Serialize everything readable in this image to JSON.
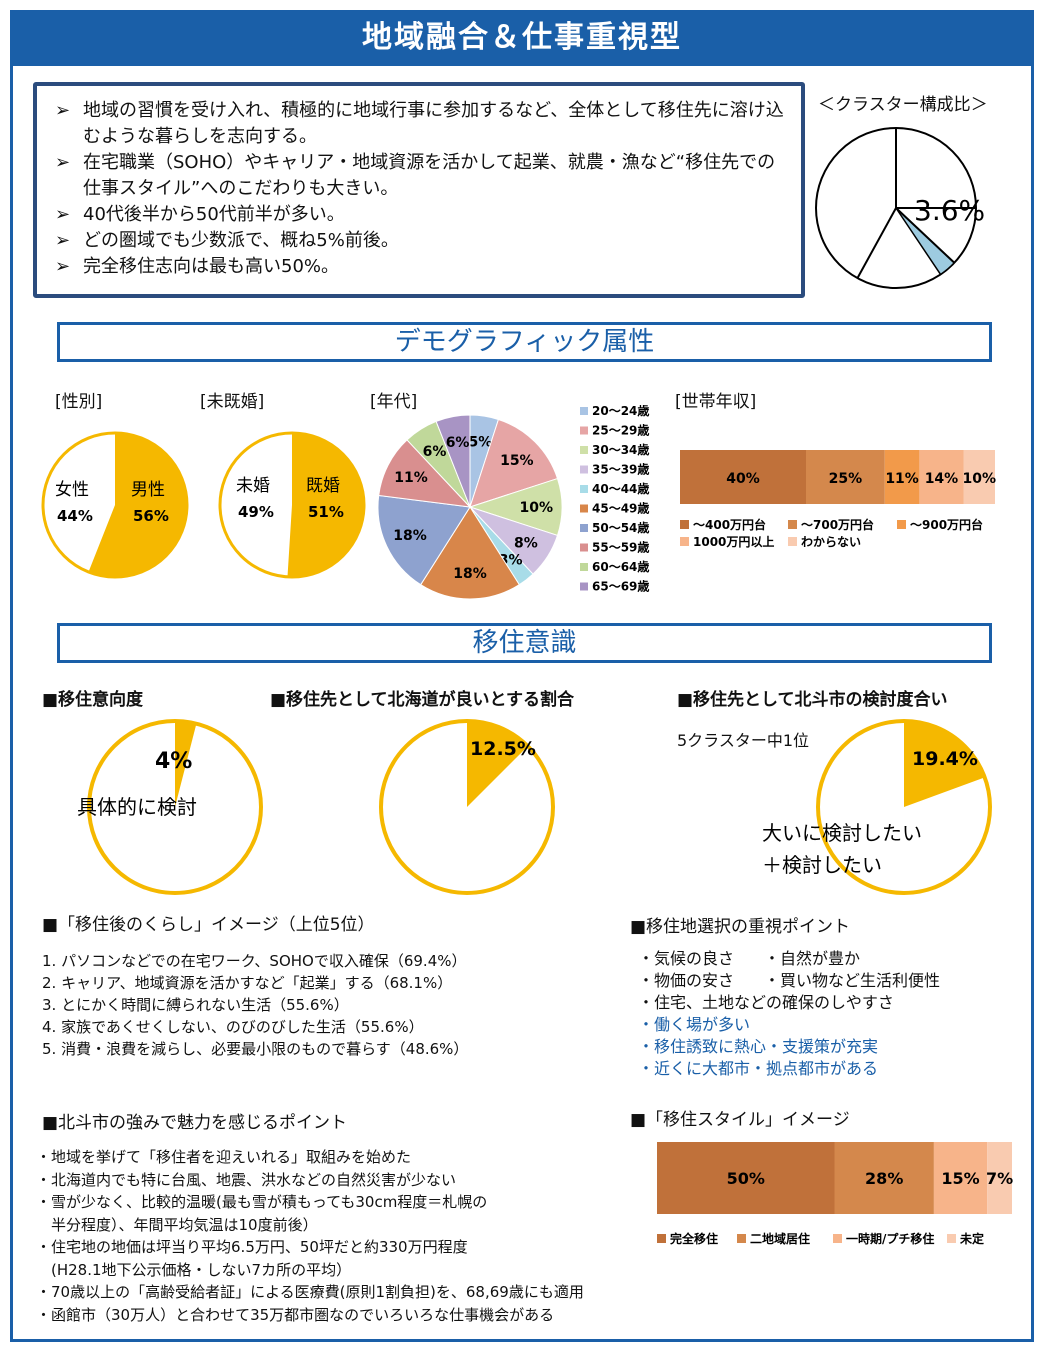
{
  "title": "地域融合＆仕事重視型",
  "summary": [
    "地域の習慣を受け入れ、積極的に地域行事に参加するなど、全体として移住先に溶け込むような暮らしを志向する。",
    "在宅職業（SOHO）やキャリア・地域資源を活かして起業、就農・漁など“移住先での仕事スタイル”へのこだわりも大きい。",
    "40代後半から50代前半が多い。",
    "どの圏域でも少数派で、概ね5%前後。",
    "完全移住志向は最も高い50%。"
  ],
  "cluster": {
    "label": "＜クラスター構成比＞",
    "value_text": "3.6%",
    "value": 3.6
  },
  "section_demo": "デモグラフィック属性",
  "section_iju": "移住意識",
  "colors": {
    "gold": "#f5b800",
    "brown": "#c0713a",
    "orange": "#f28c38",
    "blue": "#1a5fa8",
    "lightblue": "#9dcbe0"
  },
  "chart_data": [
    {
      "type": "pie",
      "id": "gender",
      "title": "[性別]",
      "labels": [
        "男性",
        "女性"
      ],
      "values": [
        56,
        44
      ],
      "value_labels": [
        "56%",
        "44%"
      ]
    },
    {
      "type": "pie",
      "id": "marital",
      "title": "[未既婚]",
      "labels": [
        "既婚",
        "未婚"
      ],
      "values": [
        51,
        49
      ],
      "value_labels": [
        "51%",
        "49%"
      ]
    },
    {
      "type": "pie",
      "id": "age",
      "title": "[年代]",
      "labels": [
        "20～24歳",
        "25～29歳",
        "30～34歳",
        "35～39歳",
        "40～44歳",
        "45～49歳",
        "50～54歳",
        "55～59歳",
        "60～64歳",
        "65～69歳"
      ],
      "values": [
        5,
        15,
        10,
        8,
        3,
        18,
        18,
        11,
        6,
        6
      ],
      "value_labels": [
        "5%",
        "15%",
        "10%",
        "8%",
        "3%",
        "18%",
        "18%",
        "11%",
        "6%",
        "6%"
      ],
      "colors": [
        "#a9c4e4",
        "#e6a5a5",
        "#cfe0a8",
        "#cfc0e0",
        "#a8dce8",
        "#d8864a",
        "#8ea2cf",
        "#d98f8f",
        "#c0d89a",
        "#a894c4"
      ]
    },
    {
      "type": "bar",
      "id": "income",
      "title": "[世帯年収]",
      "stacked": true,
      "labels": [
        "～400万円台",
        "～700万円台",
        "～900万円台",
        "1000万円以上",
        "わからない"
      ],
      "values": [
        40,
        25,
        11,
        14,
        10
      ],
      "value_labels": [
        "40%",
        "25%",
        "11%",
        "14%",
        "10%"
      ],
      "colors": [
        "#c0713a",
        "#d4884c",
        "#f29a4a",
        "#f7b48a",
        "#f9cbb0"
      ]
    },
    {
      "type": "pie",
      "id": "intent",
      "title": "■移住意向度",
      "values": [
        4
      ],
      "value_labels": [
        "4%"
      ],
      "note": "具体的に検討"
    },
    {
      "type": "pie",
      "id": "hokkaido",
      "title": "■移住先として北海道が良いとする割合",
      "values": [
        12.5
      ],
      "value_labels": [
        "12.5%"
      ]
    },
    {
      "type": "pie",
      "id": "hokuto",
      "title": "■移住先として北斗市の検討度合い",
      "subtitle": "5クラスター中1位",
      "values": [
        19.4
      ],
      "value_labels": [
        "19.4%"
      ],
      "note": [
        "大いに検討したい",
        "＋検討したい"
      ]
    },
    {
      "type": "bar",
      "id": "style",
      "title": "■「移住スタイル」イメージ",
      "stacked": true,
      "labels": [
        "完全移住",
        "二地域居住",
        "一時期/プチ移住",
        "未定"
      ],
      "values": [
        50,
        28,
        15,
        7
      ],
      "value_labels": [
        "50%",
        "28%",
        "15%",
        "7%"
      ],
      "colors": [
        "#c0713a",
        "#d4884c",
        "#f7b48a",
        "#f9cbb0"
      ]
    }
  ],
  "life_image": {
    "heading": "■「移住後のくらし」イメージ（上位5位）",
    "items": [
      "1. パソコンなどでの在宅ワーク、SOHOで収入確保（69.4%）",
      "2. キャリア、地域資源を活かすなど「起業」する（68.1%）",
      "3. とにかく時間に縛られない生活（55.6%）",
      "4. 家族であくせくしない、のびのびした生活（55.6%）",
      "5. 消費・浪費を減らし、必要最小限のもので暮らす（48.6%）"
    ]
  },
  "points": {
    "heading": "■移住地選択の重視ポイント",
    "row1a": "・気候の良さ",
    "row1b": "・自然が豊か",
    "row2a": "・物価の安さ",
    "row2b": "・買い物など生活利便性",
    "row3": "・住宅、土地などの確保のしやすさ",
    "blue_items": [
      "・働く場が多い",
      "・移住誘致に熱心・支援策が充実",
      "・近くに大都市・拠点都市がある"
    ]
  },
  "strengths": {
    "heading": "■北斗市の強みで魅力を感じるポイント",
    "items": [
      "・地域を挙げて「移住者を迎えいれる」取組みを始めた",
      "・北海道内でも特に台風、地震、洪水などの自然災害が少ない",
      "・雪が少なく、比較的温暖(最も雪が積もっても30cm程度＝札幌の",
      "　半分程度）、年間平均気温は10度前後）",
      "・住宅地の地価は坪当り平均6.5万円、50坪だと約330万円程度",
      "　(H28.1地下公示価格・しない7カ所の平均）",
      "・70歳以上の「高齢受給者証」による医療費(原則1割負担)を、68,69歳にも適用",
      "・函館市（30万人）と合わせて35万都市圏なのでいろいろな仕事機会がある"
    ]
  }
}
